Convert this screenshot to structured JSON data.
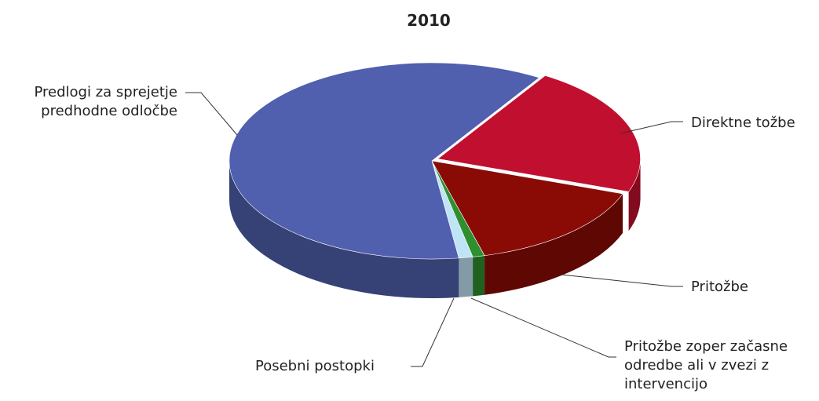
{
  "chart_data": {
    "type": "pie",
    "title": "2010",
    "categories": [
      "Direktne tožbe",
      "Pritožbe",
      "Pritožbe zoper začasne odredbe ali v zvezi z intervencijo",
      "Posebni postopki",
      "Predlogi za sprejetje predhodne odločbe"
    ],
    "values": [
      136,
      97,
      6,
      7,
      385
    ],
    "colors": [
      "#c1102f",
      "#8a0a05",
      "#2f8f2f",
      "#bfe4f6",
      "#505fae"
    ]
  }
}
